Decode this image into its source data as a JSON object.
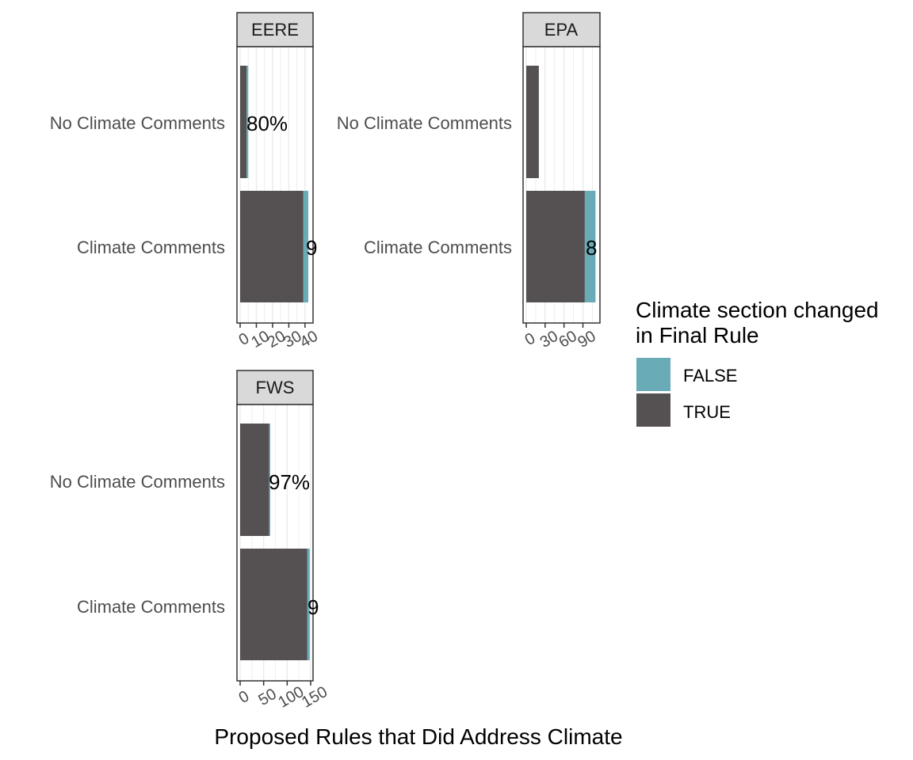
{
  "chart_data": {
    "type": "bar",
    "orientation": "horizontal",
    "stacked": true,
    "xlabel": "Proposed Rules that Did Address Climate",
    "categories": [
      "No Climate Comments",
      "Climate Comments"
    ],
    "legend": {
      "title_lines": [
        "Climate section changed",
        "in Final Rule"
      ],
      "placement": "right",
      "entries": [
        {
          "name": "FALSE",
          "color": "#6aabb8"
        },
        {
          "name": "TRUE",
          "color": "#555152"
        }
      ]
    },
    "colors": {
      "FALSE": "#6aabb8",
      "TRUE": "#555152",
      "strip_fill": "#d9d9d9",
      "grid": "#ebebeb"
    },
    "panels": [
      {
        "name": "EERE",
        "xlim": [
          0,
          43
        ],
        "ticks": [
          0,
          10,
          20,
          30,
          40
        ],
        "bars": [
          {
            "category": "No Climate Comments",
            "true": 4,
            "false": 1,
            "label": "80%"
          },
          {
            "category": "Climate Comments",
            "true": 39,
            "false": 3,
            "label": "9"
          }
        ]
      },
      {
        "name": "EPA",
        "xlim": [
          0,
          112
        ],
        "ticks": [
          0,
          30,
          60,
          90
        ],
        "bars": [
          {
            "category": "No Climate Comments",
            "true": 20,
            "false": 0,
            "label": ""
          },
          {
            "category": "Climate Comments",
            "true": 93,
            "false": 17,
            "label": "8"
          }
        ]
      },
      {
        "name": "FWS",
        "xlim": [
          0,
          150
        ],
        "ticks": [
          0,
          50,
          100,
          150
        ],
        "bars": [
          {
            "category": "No Climate Comments",
            "true": 62,
            "false": 2,
            "label": "97%"
          },
          {
            "category": "Climate Comments",
            "true": 143,
            "false": 5,
            "label": "9"
          }
        ]
      }
    ]
  }
}
